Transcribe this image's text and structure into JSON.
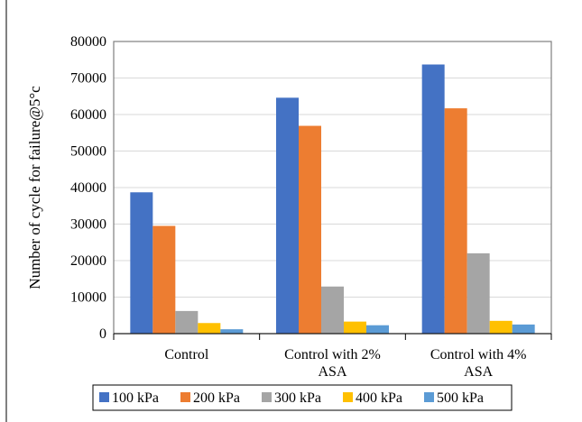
{
  "chart_data": {
    "type": "bar",
    "title": "",
    "xlabel": "",
    "ylabel": "Number of cycle for failure@5°c",
    "categories": [
      [
        "Control"
      ],
      [
        "Control with 2%",
        "ASA"
      ],
      [
        "Control with 4%",
        "ASA"
      ]
    ],
    "ylim": [
      0,
      80000
    ],
    "yticks": [
      0,
      10000,
      20000,
      30000,
      40000,
      50000,
      60000,
      70000,
      80000
    ],
    "grid": true,
    "legend_position": "bottom",
    "series": [
      {
        "name": "100 kPa",
        "color": "#4472C4",
        "values": [
          38700,
          64600,
          73700
        ]
      },
      {
        "name": "200 kPa",
        "color": "#ED7D31",
        "values": [
          29500,
          56900,
          61700
        ]
      },
      {
        "name": "300 kPa",
        "color": "#A5A5A5",
        "values": [
          6200,
          12900,
          22000
        ]
      },
      {
        "name": "400 kPa",
        "color": "#FFC000",
        "values": [
          2900,
          3300,
          3500
        ]
      },
      {
        "name": "500 kPa",
        "color": "#5B9BD5",
        "values": [
          1200,
          2300,
          2500
        ]
      }
    ]
  }
}
